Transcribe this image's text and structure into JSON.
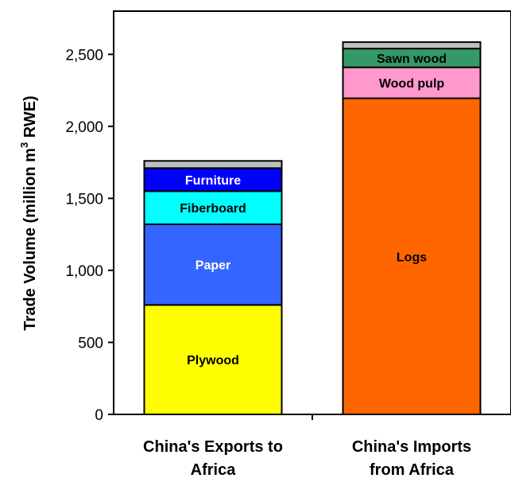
{
  "chart_data": {
    "type": "bar",
    "stacked": true,
    "ylabel": {
      "main": "Trade Volume (million m",
      "superscript": "3",
      "suffix": " RWE)"
    },
    "ylim": [
      0,
      2800
    ],
    "yticks": [
      0,
      500,
      1000,
      1500,
      2000,
      2500
    ],
    "ytick_labels": [
      "0",
      "500",
      "1,000",
      "1,500",
      "2,000",
      "2,500"
    ],
    "grid": false,
    "categories": [
      {
        "line1": "China's Exports to",
        "line2": "Africa"
      },
      {
        "line1": "China's Imports",
        "line2": "from Africa"
      }
    ],
    "bars": [
      {
        "segments": [
          {
            "label": "Plywood",
            "value": 760,
            "color": "#ffff00",
            "text_color": "#000000"
          },
          {
            "label": "Paper",
            "value": 560,
            "color": "#3366ff",
            "text_color": "#ffffff"
          },
          {
            "label": "Fiberboard",
            "value": 230,
            "color": "#00ffff",
            "text_color": "#000000"
          },
          {
            "label": "Furniture",
            "value": 160,
            "color": "#0000ff",
            "text_color": "#ffffff"
          },
          {
            "label": "",
            "value": 50,
            "color": "#c0c0c0",
            "text_color": "#000000"
          }
        ]
      },
      {
        "segments": [
          {
            "label": "Logs",
            "value": 2195,
            "color": "#ff6600",
            "text_color": "#000000"
          },
          {
            "label": "Wood pulp",
            "value": 215,
            "color": "#ff99cc",
            "text_color": "#000000"
          },
          {
            "label": "Sawn wood",
            "value": 130,
            "color": "#339966",
            "text_color": "#000000"
          },
          {
            "label": "",
            "value": 45,
            "color": "#c0c0c0",
            "text_color": "#000000"
          }
        ]
      }
    ]
  }
}
